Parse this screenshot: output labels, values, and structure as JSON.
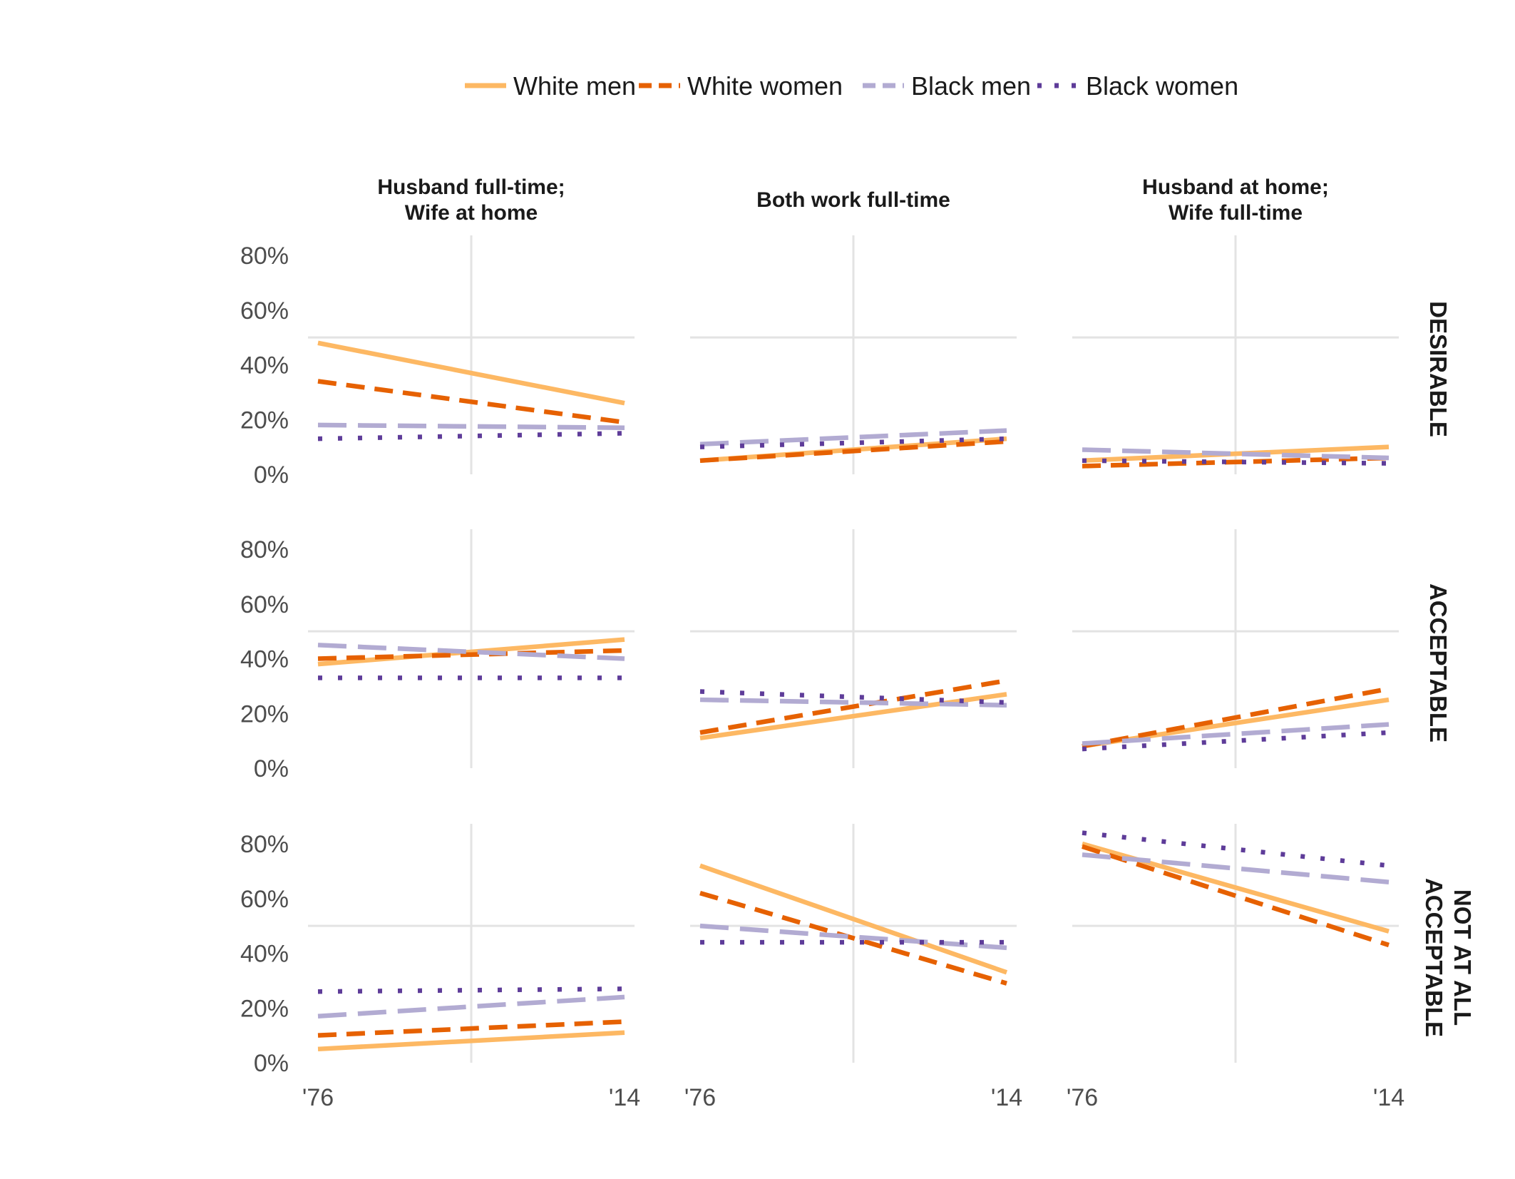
{
  "chart_data": {
    "type": "line",
    "x_categories": [
      "'76",
      "'14"
    ],
    "ylim": [
      0,
      80
    ],
    "y_ticks": [
      0,
      20,
      40,
      60,
      80
    ],
    "y_tick_labels": [
      "0%",
      "20%",
      "40%",
      "60%",
      "80%"
    ],
    "grid": true,
    "legend_position": "top",
    "columns": [
      "Husband full-time;\nWife at home",
      "Both work full-time",
      "Husband at home;\nWife full-time"
    ],
    "rows": [
      "DESIRABLE",
      "ACCEPTABLE",
      "NOT AT ALL\nACCEPTABLE"
    ],
    "series": [
      {
        "name": "White men",
        "color": "#fdb863",
        "dash": "solid"
      },
      {
        "name": "White women",
        "color": "#e66101",
        "dash": "dashed"
      },
      {
        "name": "Black men",
        "color": "#b2abd2",
        "dash": "longdash"
      },
      {
        "name": "Black women",
        "color": "#5e3c99",
        "dash": "dotted"
      }
    ],
    "panels": [
      {
        "row": 0,
        "col": 0,
        "values": {
          "White men": [
            48,
            26
          ],
          "White women": [
            34,
            19
          ],
          "Black men": [
            18,
            17
          ],
          "Black women": [
            13,
            15
          ]
        }
      },
      {
        "row": 0,
        "col": 1,
        "values": {
          "White men": [
            5,
            13
          ],
          "White women": [
            5,
            12
          ],
          "Black men": [
            11,
            16
          ],
          "Black women": [
            10,
            13
          ]
        }
      },
      {
        "row": 0,
        "col": 2,
        "values": {
          "White men": [
            5,
            10
          ],
          "White women": [
            3,
            6
          ],
          "Black men": [
            9,
            6
          ],
          "Black women": [
            5,
            4
          ]
        }
      },
      {
        "row": 1,
        "col": 0,
        "values": {
          "White men": [
            38,
            47
          ],
          "White women": [
            40,
            43
          ],
          "Black men": [
            45,
            40
          ],
          "Black women": [
            33,
            33
          ]
        }
      },
      {
        "row": 1,
        "col": 1,
        "values": {
          "White men": [
            11,
            27
          ],
          "White women": [
            13,
            32
          ],
          "Black men": [
            25,
            23
          ],
          "Black women": [
            28,
            24
          ]
        }
      },
      {
        "row": 1,
        "col": 2,
        "values": {
          "White men": [
            8,
            25
          ],
          "White women": [
            8,
            29
          ],
          "Black men": [
            9,
            16
          ],
          "Black women": [
            7,
            13
          ]
        }
      },
      {
        "row": 2,
        "col": 0,
        "values": {
          "White men": [
            5,
            11
          ],
          "White women": [
            10,
            15
          ],
          "Black men": [
            17,
            24
          ],
          "Black women": [
            26,
            27
          ]
        }
      },
      {
        "row": 2,
        "col": 1,
        "values": {
          "White men": [
            72,
            33
          ],
          "White women": [
            62,
            29
          ],
          "Black men": [
            50,
            42
          ],
          "Black women": [
            44,
            44
          ]
        }
      },
      {
        "row": 2,
        "col": 2,
        "values": {
          "White men": [
            80,
            48
          ],
          "White women": [
            79,
            43
          ],
          "Black men": [
            76,
            66
          ],
          "Black women": [
            84,
            72
          ]
        }
      }
    ]
  }
}
